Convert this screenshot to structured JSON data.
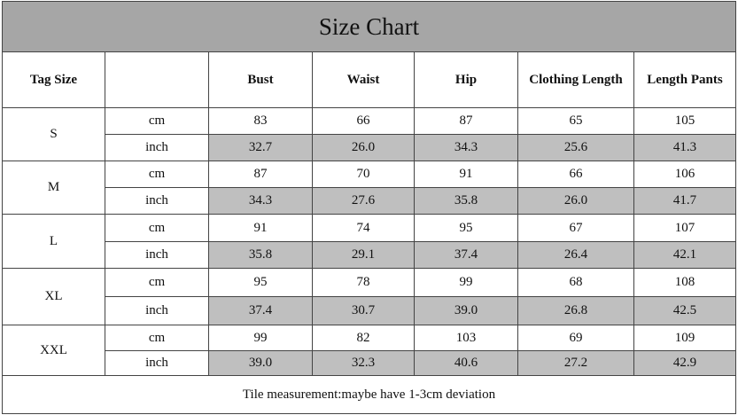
{
  "header": {
    "title": "Size Chart"
  },
  "table": {
    "tag_size_label": "Tag Size",
    "columns": [
      "Bust",
      "Waist",
      "Hip",
      "Clothing Length",
      "Length Pants"
    ],
    "rows": [
      {
        "size": "S",
        "lines": [
          {
            "unit": "cm",
            "values": [
              "83",
              "66",
              "87",
              "65",
              "105"
            ]
          },
          {
            "unit": "inch",
            "values": [
              "32.7",
              "26.0",
              "34.3",
              "25.6",
              "41.3"
            ]
          }
        ]
      },
      {
        "size": "M",
        "lines": [
          {
            "unit": "cm",
            "values": [
              "87",
              "70",
              "91",
              "66",
              "106"
            ]
          },
          {
            "unit": "inch",
            "values": [
              "34.3",
              "27.6",
              "35.8",
              "26.0",
              "41.7"
            ]
          }
        ]
      },
      {
        "size": "L",
        "lines": [
          {
            "unit": "cm",
            "values": [
              "91",
              "74",
              "95",
              "67",
              "107"
            ]
          },
          {
            "unit": "inch",
            "values": [
              "35.8",
              "29.1",
              "37.4",
              "26.4",
              "42.1"
            ]
          }
        ]
      },
      {
        "size": "XL",
        "lines": [
          {
            "unit": "cm",
            "values": [
              "95",
              "78",
              "99",
              "68",
              "108"
            ]
          },
          {
            "unit": "inch",
            "values": [
              "37.4",
              "30.7",
              "39.0",
              "26.8",
              "42.5"
            ]
          }
        ]
      },
      {
        "size": "XXL",
        "lines": [
          {
            "unit": "cm",
            "values": [
              "99",
              "82",
              "103",
              "69",
              "109"
            ]
          },
          {
            "unit": "inch",
            "values": [
              "39.0",
              "32.3",
              "40.6",
              "27.2",
              "42.9"
            ]
          }
        ]
      }
    ],
    "footer": "Tile measurement:maybe have 1-3cm deviation"
  }
}
